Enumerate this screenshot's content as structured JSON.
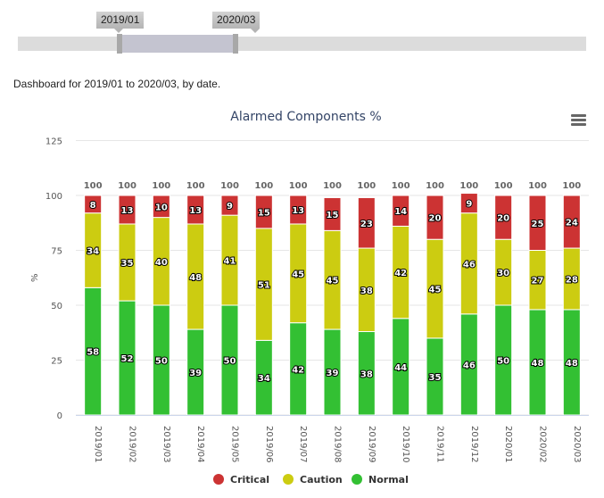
{
  "range_slider": {
    "start": "2019/01",
    "end": "2020/03"
  },
  "description": "Dashboard for 2019/01 to 2020/03, by date.",
  "menu_icon": "hamburger-menu-icon",
  "chart_data": {
    "type": "bar",
    "stacked": true,
    "title": "Alarmed Components %",
    "xlabel": "",
    "ylabel": "%",
    "ylim": [
      0,
      125
    ],
    "yticks": [
      "0",
      "25",
      "50",
      "75",
      "100",
      "125"
    ],
    "categories": [
      "2019/01",
      "2019/02",
      "2019/03",
      "2019/04",
      "2019/05",
      "2019/06",
      "2019/07",
      "2019/08",
      "2019/09",
      "2019/10",
      "2019/11",
      "2019/12",
      "2020/01",
      "2020/02",
      "2020/03"
    ],
    "totals": [
      "100",
      "100",
      "100",
      "100",
      "100",
      "100",
      "100",
      "100",
      "100",
      "100",
      "100",
      "100",
      "100",
      "100",
      "100"
    ],
    "series": [
      {
        "name": "Normal",
        "color": "#33c033",
        "values": [
          58,
          52,
          50,
          39,
          50,
          34,
          42,
          39,
          38,
          44,
          35,
          46,
          50,
          48,
          48
        ]
      },
      {
        "name": "Caution",
        "color": "#cccc11",
        "values": [
          34,
          35,
          40,
          48,
          41,
          51,
          45,
          45,
          38,
          42,
          45,
          46,
          30,
          27,
          28
        ]
      },
      {
        "name": "Critical",
        "color": "#cc3333",
        "values": [
          8,
          13,
          10,
          13,
          9,
          15,
          13,
          15,
          23,
          14,
          20,
          9,
          20,
          25,
          24
        ]
      }
    ],
    "legend": [
      "Critical",
      "Caution",
      "Normal"
    ],
    "legend_position": "bottom",
    "grid": true
  }
}
